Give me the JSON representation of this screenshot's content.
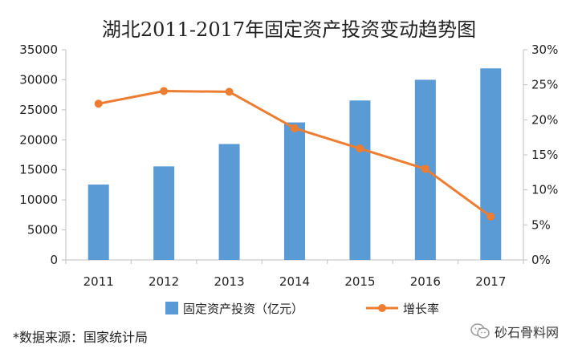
{
  "chart_data": {
    "type": "bar+line",
    "title": "湖北2011-2017年固定资产投资变动趋势图",
    "categories": [
      "2011",
      "2012",
      "2013",
      "2014",
      "2015",
      "2016",
      "2017"
    ],
    "series": [
      {
        "name": "固定资产投资（亿元）",
        "type": "bar",
        "axis": "left",
        "values": [
          12550,
          15580,
          19300,
          22900,
          26550,
          30000,
          31900
        ],
        "color": "#5b9bd5"
      },
      {
        "name": "增长率",
        "type": "line",
        "axis": "right",
        "values": [
          22.3,
          24.1,
          24.0,
          18.8,
          15.9,
          13.0,
          6.2
        ],
        "color": "#ed7d31"
      }
    ],
    "y_left": {
      "lim": [
        0,
        35000
      ],
      "ticks": [
        "0",
        "5000",
        "10000",
        "15000",
        "20000",
        "25000",
        "30000",
        "35000"
      ]
    },
    "y_right": {
      "lim": [
        0,
        30
      ],
      "ticks": [
        "0%",
        "5%",
        "10%",
        "15%",
        "20%",
        "25%",
        "30%"
      ]
    },
    "legend_position": "bottom",
    "grid": false
  },
  "footer": {
    "source": "*数据来源：国家统计局",
    "brand": "砂石骨料网",
    "brand_icon": "wechat-icon"
  }
}
